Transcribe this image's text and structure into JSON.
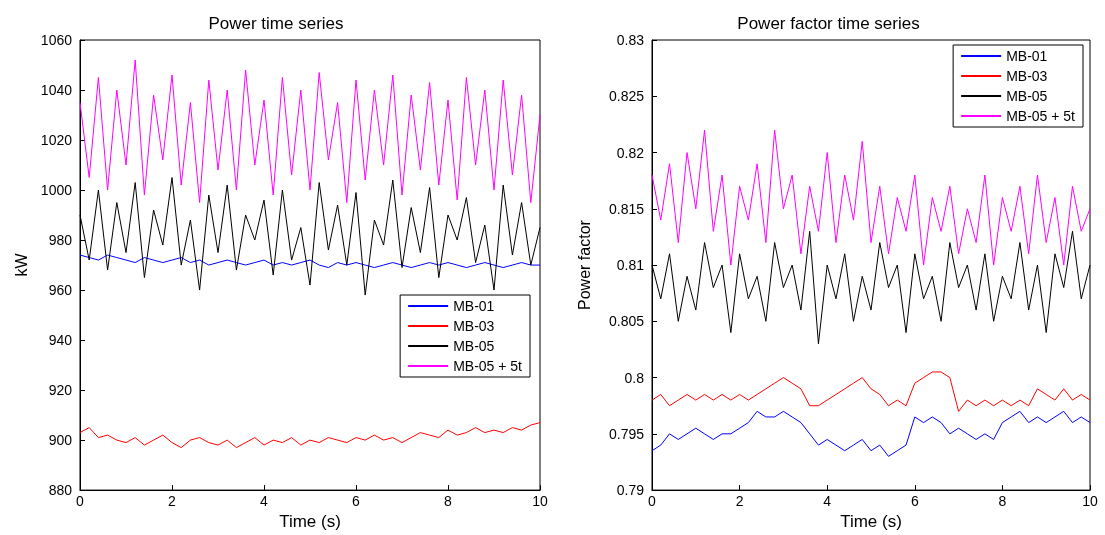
{
  "chart_data": [
    {
      "type": "line",
      "title": "Power time series",
      "xlabel": "Time (s)",
      "ylabel": "kW",
      "x": [
        0,
        0.2,
        0.4,
        0.6,
        0.8,
        1,
        1.2,
        1.4,
        1.6,
        1.8,
        2,
        2.2,
        2.4,
        2.6,
        2.8,
        3,
        3.2,
        3.4,
        3.6,
        3.8,
        4,
        4.2,
        4.4,
        4.6,
        4.8,
        5,
        5.2,
        5.4,
        5.6,
        5.8,
        6,
        6.2,
        6.4,
        6.6,
        6.8,
        7,
        7.2,
        7.4,
        7.6,
        7.8,
        8,
        8.2,
        8.4,
        8.6,
        8.8,
        9,
        9.2,
        9.4,
        9.6,
        9.8,
        10
      ],
      "series": [
        {
          "name": "MB-01",
          "color": "#0000ff",
          "values": [
            974,
            973,
            972,
            974,
            973,
            972,
            971,
            973,
            972,
            971,
            972,
            973,
            971,
            972,
            970,
            971,
            972,
            971,
            970,
            971,
            972,
            970,
            971,
            970,
            971,
            972,
            970,
            969,
            971,
            970,
            971,
            970,
            969,
            970,
            971,
            970,
            969,
            970,
            971,
            970,
            971,
            970,
            969,
            970,
            971,
            970,
            969,
            970,
            971,
            970,
            970
          ]
        },
        {
          "name": "MB-03",
          "color": "#ff0000",
          "values": [
            903,
            905,
            901,
            902,
            900,
            899,
            901,
            898,
            900,
            902,
            899,
            897,
            900,
            901,
            899,
            898,
            900,
            897,
            899,
            901,
            898,
            900,
            899,
            901,
            898,
            900,
            899,
            901,
            900,
            899,
            901,
            900,
            902,
            900,
            901,
            899,
            901,
            903,
            902,
            901,
            904,
            902,
            903,
            905,
            903,
            904,
            903,
            905,
            904,
            906,
            907
          ]
        },
        {
          "name": "MB-05",
          "color": "#000000",
          "values": [
            990,
            972,
            1000,
            968,
            995,
            975,
            1003,
            965,
            992,
            978,
            1005,
            970,
            988,
            960,
            998,
            975,
            1002,
            968,
            990,
            980,
            996,
            966,
            1000,
            972,
            985,
            962,
            1003,
            976,
            994,
            970,
            999,
            958,
            988,
            978,
            1004,
            969,
            993,
            975,
            1001,
            965,
            990,
            980,
            997,
            971,
            986,
            960,
            1002,
            974,
            995,
            970,
            985
          ]
        },
        {
          "name": "MB-05 + 5t",
          "color": "#ff00ff",
          "values": [
            1035,
            1005,
            1045,
            1000,
            1040,
            1010,
            1052,
            998,
            1038,
            1012,
            1046,
            1002,
            1035,
            995,
            1044,
            1008,
            1040,
            1000,
            1048,
            1010,
            1036,
            998,
            1045,
            1006,
            1040,
            1000,
            1047,
            1012,
            1035,
            995,
            1044,
            1004,
            1040,
            1010,
            1046,
            998,
            1038,
            1008,
            1043,
            1002,
            1036,
            996,
            1045,
            1010,
            1040,
            1000,
            1044,
            1006,
            1038,
            995,
            1030
          ]
        }
      ],
      "xlim": [
        0,
        10
      ],
      "xticks": [
        0,
        2,
        4,
        6,
        8,
        10
      ],
      "ylim": [
        880,
        1060
      ],
      "yticks": [
        880,
        900,
        920,
        940,
        960,
        980,
        1000,
        1020,
        1040,
        1060
      ],
      "legend": "bottom right",
      "line_style": "solid",
      "grid": false
    },
    {
      "type": "line",
      "title": "Power factor time series",
      "xlabel": "Time (s)",
      "ylabel": "Power factor",
      "x": [
        0,
        0.2,
        0.4,
        0.6,
        0.8,
        1,
        1.2,
        1.4,
        1.6,
        1.8,
        2,
        2.2,
        2.4,
        2.6,
        2.8,
        3,
        3.2,
        3.4,
        3.6,
        3.8,
        4,
        4.2,
        4.4,
        4.6,
        4.8,
        5,
        5.2,
        5.4,
        5.6,
        5.8,
        6,
        6.2,
        6.4,
        6.6,
        6.8,
        7,
        7.2,
        7.4,
        7.6,
        7.8,
        8,
        8.2,
        8.4,
        8.6,
        8.8,
        9,
        9.2,
        9.4,
        9.6,
        9.8,
        10
      ],
      "series": [
        {
          "name": "MB-01",
          "color": "#0000ff",
          "values": [
            0.7935,
            0.794,
            0.795,
            0.7945,
            0.795,
            0.7955,
            0.795,
            0.7945,
            0.795,
            0.795,
            0.7955,
            0.796,
            0.797,
            0.7965,
            0.7965,
            0.797,
            0.7965,
            0.796,
            0.795,
            0.794,
            0.7945,
            0.794,
            0.7935,
            0.794,
            0.7945,
            0.7935,
            0.794,
            0.793,
            0.7935,
            0.794,
            0.7965,
            0.796,
            0.7965,
            0.796,
            0.795,
            0.7955,
            0.795,
            0.7945,
            0.795,
            0.7945,
            0.796,
            0.7965,
            0.797,
            0.796,
            0.7965,
            0.796,
            0.7965,
            0.797,
            0.796,
            0.7965,
            0.796
          ]
        },
        {
          "name": "MB-03",
          "color": "#ff0000",
          "values": [
            0.798,
            0.7985,
            0.7975,
            0.798,
            0.7985,
            0.798,
            0.7985,
            0.798,
            0.7985,
            0.798,
            0.7985,
            0.798,
            0.7985,
            0.799,
            0.7995,
            0.8,
            0.7995,
            0.799,
            0.7975,
            0.7975,
            0.798,
            0.7985,
            0.799,
            0.7995,
            0.8,
            0.799,
            0.7985,
            0.7975,
            0.798,
            0.7975,
            0.7995,
            0.8,
            0.8005,
            0.8005,
            0.8,
            0.797,
            0.798,
            0.7975,
            0.798,
            0.7975,
            0.798,
            0.7975,
            0.798,
            0.7975,
            0.799,
            0.7985,
            0.798,
            0.799,
            0.798,
            0.7985,
            0.798
          ]
        },
        {
          "name": "MB-05",
          "color": "#000000",
          "values": [
            0.81,
            0.807,
            0.811,
            0.805,
            0.809,
            0.806,
            0.812,
            0.808,
            0.81,
            0.804,
            0.811,
            0.807,
            0.809,
            0.805,
            0.812,
            0.808,
            0.81,
            0.806,
            0.813,
            0.803,
            0.81,
            0.807,
            0.811,
            0.805,
            0.809,
            0.806,
            0.812,
            0.808,
            0.81,
            0.804,
            0.811,
            0.807,
            0.809,
            0.805,
            0.812,
            0.808,
            0.81,
            0.806,
            0.811,
            0.805,
            0.809,
            0.807,
            0.812,
            0.806,
            0.81,
            0.804,
            0.811,
            0.808,
            0.813,
            0.807,
            0.81
          ]
        },
        {
          "name": "MB-05 + 5t",
          "color": "#ff00ff",
          "values": [
            0.818,
            0.814,
            0.819,
            0.812,
            0.82,
            0.815,
            0.822,
            0.813,
            0.818,
            0.81,
            0.817,
            0.814,
            0.819,
            0.812,
            0.822,
            0.815,
            0.818,
            0.811,
            0.817,
            0.813,
            0.82,
            0.812,
            0.818,
            0.814,
            0.821,
            0.812,
            0.817,
            0.811,
            0.816,
            0.813,
            0.818,
            0.81,
            0.816,
            0.813,
            0.817,
            0.811,
            0.815,
            0.812,
            0.818,
            0.81,
            0.816,
            0.813,
            0.817,
            0.811,
            0.818,
            0.812,
            0.816,
            0.81,
            0.817,
            0.813,
            0.815
          ]
        }
      ],
      "xlim": [
        0,
        10
      ],
      "xticks": [
        0,
        2,
        4,
        6,
        8,
        10
      ],
      "ylim": [
        0.79,
        0.83
      ],
      "yticks": [
        0.79,
        0.795,
        0.8,
        0.805,
        0.81,
        0.815,
        0.82,
        0.825,
        0.83
      ],
      "legend": "top right",
      "line_style": "solid",
      "grid": false
    }
  ]
}
